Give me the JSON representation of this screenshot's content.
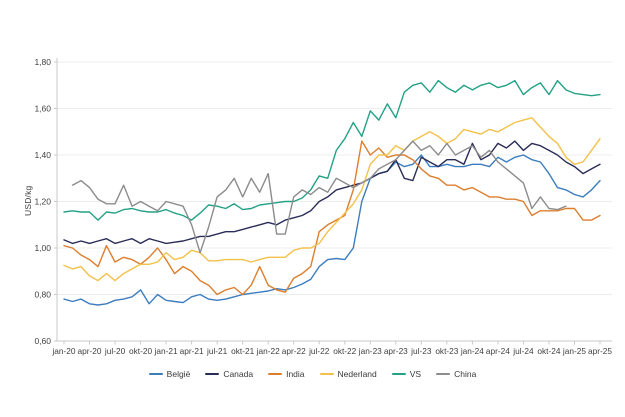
{
  "chart_data": {
    "type": "line",
    "title": "",
    "ylabel": "USD/kg",
    "ylim": [
      0.6,
      1.8
    ],
    "y_tick_labels": [
      "0,60",
      "0,80",
      "1,00",
      "1,20",
      "1,40",
      "1,60",
      "1,80"
    ],
    "y_tick_values": [
      0.6,
      0.8,
      1.0,
      1.2,
      1.4,
      1.6,
      1.8
    ],
    "x_tick_labels": [
      "jan-20",
      "apr-20",
      "jul-20",
      "okt-20",
      "jan-21",
      "apr-21",
      "jul-21",
      "okt-21",
      "jan-22",
      "apr-22",
      "jul-22",
      "okt-22",
      "jan-23",
      "apr-23",
      "jul-23",
      "okt-23",
      "jan-24",
      "apr-24",
      "jul-24",
      "okt-24",
      "jan-25",
      "apr-25"
    ],
    "x_tick_every_months": 3,
    "months_total": 64,
    "x_range_note": "monthly values jan-20 through apr-25",
    "grid": "horizontal",
    "legend_position": "bottom",
    "axis_color": "#c9c9c9",
    "grid_color": "#ececec",
    "text_color": "#3f3f3f",
    "series": [
      {
        "name": "België",
        "color": "#3c7dbe",
        "values": [
          0.78,
          0.77,
          0.78,
          0.76,
          0.755,
          0.76,
          0.775,
          0.78,
          0.79,
          0.82,
          0.76,
          0.8,
          0.775,
          0.77,
          0.765,
          0.79,
          0.8,
          0.78,
          0.775,
          0.78,
          0.79,
          0.8,
          0.805,
          0.81,
          0.815,
          0.825,
          0.82,
          0.83,
          0.845,
          0.865,
          0.92,
          0.95,
          0.955,
          0.95,
          1.0,
          1.2,
          1.3,
          1.32,
          1.33,
          1.37,
          1.35,
          1.36,
          1.4,
          1.35,
          1.35,
          1.36,
          1.35,
          1.35,
          1.36,
          1.36,
          1.35,
          1.39,
          1.37,
          1.39,
          1.4,
          1.38,
          1.37,
          1.32,
          1.26,
          1.25,
          1.23,
          1.22,
          1.25,
          1.29
        ]
      },
      {
        "name": "Canada",
        "color": "#2a2d58",
        "values": [
          1.035,
          1.02,
          1.03,
          1.02,
          1.03,
          1.04,
          1.02,
          1.03,
          1.04,
          1.02,
          1.04,
          1.03,
          1.02,
          1.025,
          1.03,
          1.04,
          1.05,
          1.05,
          1.06,
          1.07,
          1.07,
          1.08,
          1.09,
          1.1,
          1.11,
          1.1,
          1.12,
          1.13,
          1.14,
          1.16,
          1.2,
          1.22,
          1.25,
          1.26,
          1.27,
          1.28,
          1.3,
          1.32,
          1.33,
          1.38,
          1.3,
          1.29,
          1.39,
          1.37,
          1.35,
          1.38,
          1.38,
          1.36,
          1.45,
          1.38,
          1.4,
          1.45,
          1.43,
          1.46,
          1.42,
          1.45,
          1.44,
          1.42,
          1.4,
          1.37,
          1.35,
          1.32,
          1.34,
          1.36
        ]
      },
      {
        "name": "India",
        "color": "#dd7e2d",
        "values": [
          1.01,
          1.0,
          0.97,
          0.95,
          0.92,
          1.01,
          0.94,
          0.96,
          0.95,
          0.93,
          0.96,
          1.0,
          0.95,
          0.89,
          0.92,
          0.9,
          0.86,
          0.84,
          0.8,
          0.82,
          0.83,
          0.8,
          0.84,
          0.92,
          0.84,
          0.82,
          0.81,
          0.87,
          0.89,
          0.92,
          1.07,
          1.1,
          1.12,
          1.14,
          1.25,
          1.46,
          1.4,
          1.43,
          1.39,
          1.4,
          1.4,
          1.38,
          1.34,
          1.31,
          1.3,
          1.27,
          1.27,
          1.25,
          1.26,
          1.24,
          1.22,
          1.22,
          1.21,
          1.21,
          1.2,
          1.14,
          1.16,
          1.16,
          1.16,
          1.17,
          1.17,
          1.12,
          1.12,
          1.14
        ]
      },
      {
        "name": "Nederland",
        "color": "#f2c14b",
        "values": [
          0.925,
          0.91,
          0.92,
          0.88,
          0.86,
          0.89,
          0.86,
          0.89,
          0.91,
          0.93,
          0.93,
          0.94,
          0.98,
          0.95,
          0.96,
          0.99,
          0.98,
          0.945,
          0.945,
          0.95,
          0.95,
          0.95,
          0.94,
          0.95,
          0.96,
          0.96,
          0.96,
          0.99,
          1.0,
          1.0,
          1.02,
          1.07,
          1.11,
          1.15,
          1.19,
          1.25,
          1.36,
          1.4,
          1.4,
          1.44,
          1.42,
          1.46,
          1.48,
          1.5,
          1.48,
          1.45,
          1.47,
          1.51,
          1.5,
          1.49,
          1.51,
          1.5,
          1.52,
          1.54,
          1.55,
          1.56,
          1.52,
          1.48,
          1.45,
          1.39,
          1.36,
          1.37,
          1.42,
          1.47
        ]
      },
      {
        "name": "VS",
        "color": "#23a186",
        "values": [
          1.155,
          1.16,
          1.155,
          1.155,
          1.12,
          1.155,
          1.15,
          1.165,
          1.17,
          1.16,
          1.155,
          1.155,
          1.165,
          1.15,
          1.14,
          1.12,
          1.15,
          1.185,
          1.18,
          1.17,
          1.19,
          1.165,
          1.17,
          1.185,
          1.19,
          1.195,
          1.2,
          1.2,
          1.215,
          1.25,
          1.31,
          1.3,
          1.42,
          1.47,
          1.54,
          1.48,
          1.59,
          1.55,
          1.62,
          1.56,
          1.67,
          1.7,
          1.71,
          1.67,
          1.72,
          1.69,
          1.67,
          1.7,
          1.68,
          1.7,
          1.71,
          1.69,
          1.7,
          1.72,
          1.66,
          1.69,
          1.71,
          1.66,
          1.72,
          1.68,
          1.665,
          1.66,
          1.655,
          1.66
        ]
      },
      {
        "name": "China",
        "color": "#8c8c8c",
        "values": [
          null,
          1.27,
          1.29,
          1.26,
          1.21,
          1.19,
          1.19,
          1.27,
          1.18,
          1.2,
          1.18,
          1.16,
          1.2,
          1.19,
          1.18,
          1.1,
          0.98,
          1.09,
          1.22,
          1.25,
          1.3,
          1.22,
          1.3,
          1.24,
          1.32,
          1.06,
          1.06,
          1.22,
          1.25,
          1.23,
          1.26,
          1.24,
          1.3,
          1.28,
          1.26,
          1.28,
          1.3,
          1.34,
          1.36,
          1.38,
          1.42,
          1.46,
          1.42,
          1.44,
          1.4,
          1.45,
          1.4,
          1.42,
          1.44,
          1.39,
          1.42,
          1.37,
          1.34,
          1.31,
          1.28,
          1.17,
          1.22,
          1.17,
          1.165,
          1.18,
          null,
          null,
          null,
          null
        ]
      }
    ]
  }
}
